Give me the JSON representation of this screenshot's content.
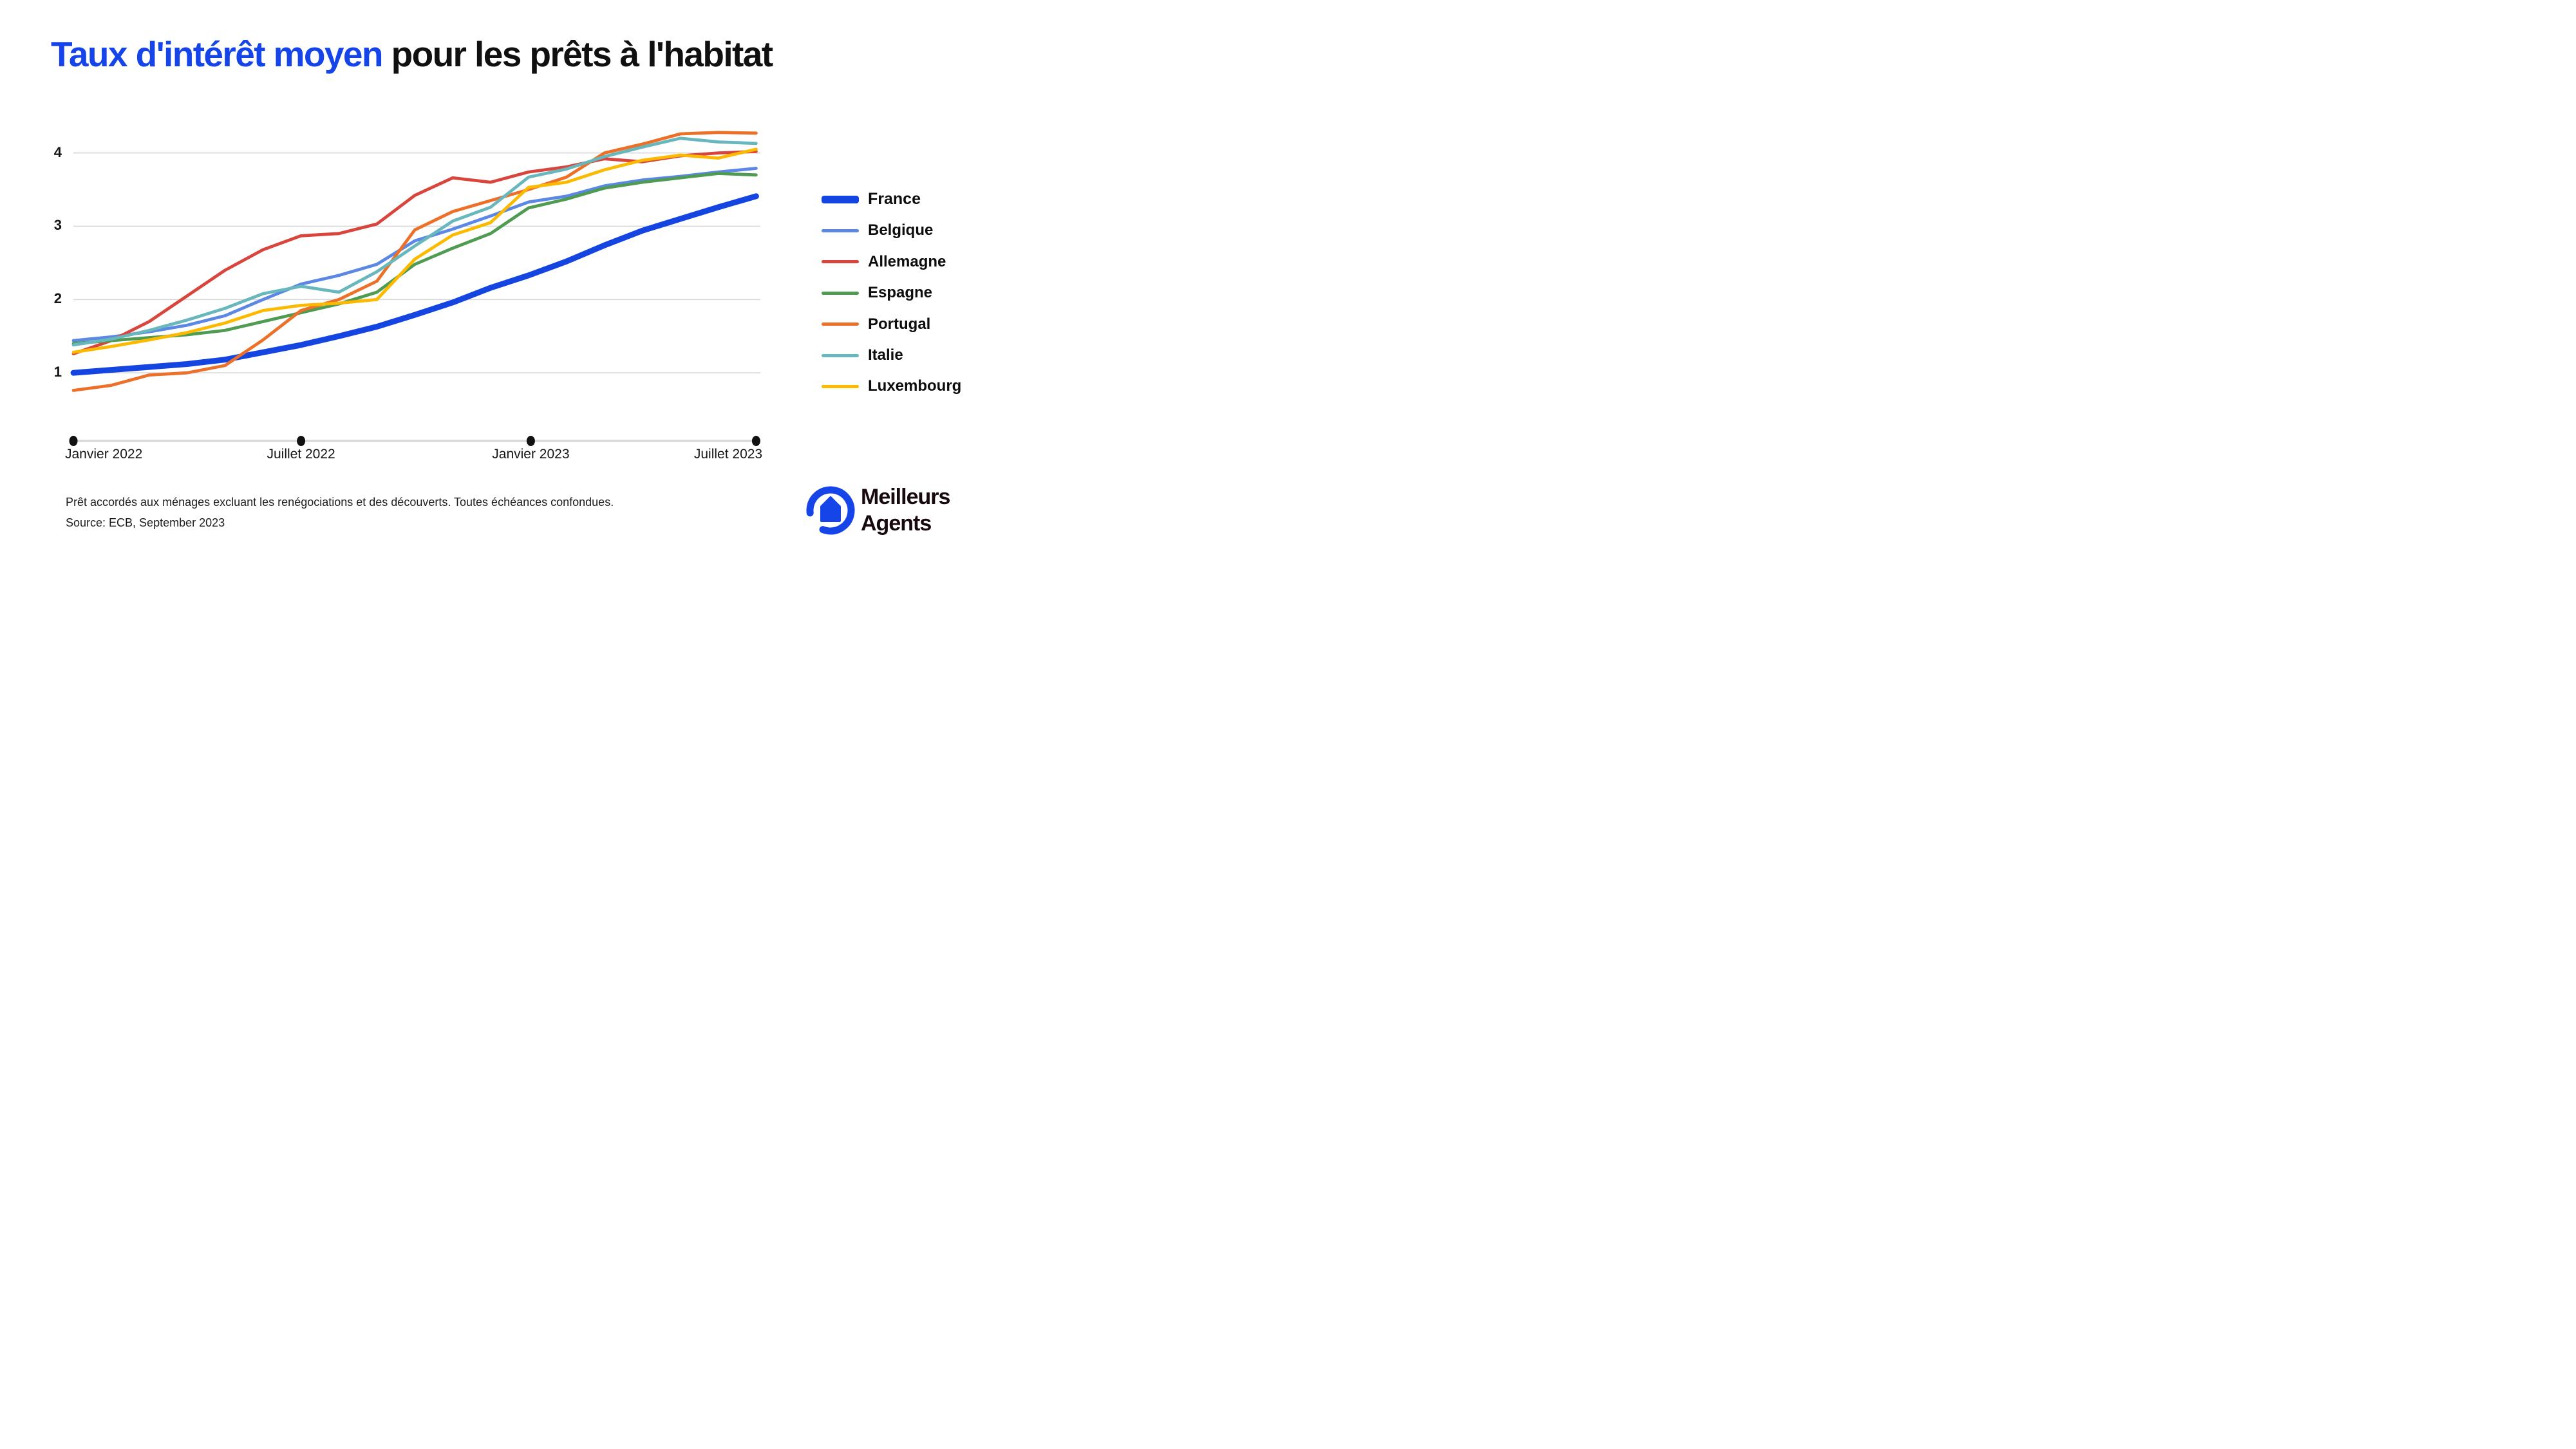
{
  "title": {
    "highlight": "Taux d'intérêt moyen",
    "rest": " pour les prêts à l'habitat"
  },
  "chart_data": {
    "type": "line",
    "x_tick_labels": [
      "Janvier 2022",
      "Juillet 2022",
      "Janvier 2023",
      "Juillet 2023"
    ],
    "x_range_months": [
      "Janvier 2022",
      "Juillet 2023"
    ],
    "points_per_series": 19,
    "y_ticks": [
      1,
      2,
      3,
      4
    ],
    "ylim": [
      0.6,
      4.45
    ],
    "grid": "horizontal",
    "legend_position": "right",
    "series": [
      {
        "name": "France",
        "color": "#1545e0",
        "emphasis": true,
        "values": [
          1.0,
          1.04,
          1.08,
          1.12,
          1.18,
          1.28,
          1.38,
          1.5,
          1.63,
          1.79,
          1.96,
          2.16,
          2.33,
          2.52,
          2.74,
          2.94,
          3.1,
          3.26,
          3.41
        ]
      },
      {
        "name": "Belgique",
        "color": "#5b87e5",
        "emphasis": false,
        "values": [
          1.44,
          1.49,
          1.56,
          1.65,
          1.78,
          2.0,
          2.21,
          2.33,
          2.48,
          2.8,
          2.96,
          3.14,
          3.33,
          3.41,
          3.55,
          3.63,
          3.68,
          3.74,
          3.79
        ]
      },
      {
        "name": "Allemagne",
        "color": "#d9453c",
        "emphasis": false,
        "values": [
          1.26,
          1.44,
          1.7,
          2.05,
          2.4,
          2.68,
          2.87,
          2.9,
          3.03,
          3.42,
          3.66,
          3.6,
          3.74,
          3.81,
          3.92,
          3.88,
          3.96,
          4.0,
          4.02
        ]
      },
      {
        "name": "Espagne",
        "color": "#4e9b51",
        "emphasis": false,
        "values": [
          1.4,
          1.44,
          1.48,
          1.52,
          1.58,
          1.7,
          1.82,
          1.94,
          2.1,
          2.48,
          2.7,
          2.9,
          3.25,
          3.37,
          3.52,
          3.6,
          3.66,
          3.72,
          3.7
        ]
      },
      {
        "name": "Portugal",
        "color": "#ed7028",
        "emphasis": false,
        "values": [
          0.76,
          0.83,
          0.97,
          1.0,
          1.1,
          1.45,
          1.85,
          2.0,
          2.25,
          2.95,
          3.2,
          3.35,
          3.5,
          3.67,
          4.0,
          4.12,
          4.26,
          4.28,
          4.27
        ]
      },
      {
        "name": "Italie",
        "color": "#67b7bc",
        "emphasis": false,
        "values": [
          1.38,
          1.46,
          1.58,
          1.72,
          1.88,
          2.08,
          2.18,
          2.1,
          2.38,
          2.73,
          3.07,
          3.26,
          3.67,
          3.78,
          3.95,
          4.08,
          4.2,
          4.15,
          4.13
        ]
      },
      {
        "name": "Luxembourg",
        "color": "#fbba00",
        "emphasis": false,
        "values": [
          1.28,
          1.36,
          1.45,
          1.55,
          1.68,
          1.85,
          1.92,
          1.95,
          2.0,
          2.55,
          2.88,
          3.05,
          3.53,
          3.6,
          3.77,
          3.9,
          3.97,
          3.93,
          4.05
        ]
      }
    ]
  },
  "footnote": {
    "line1": "Prêt accordés aux ménages excluant les renégociations et des découverts. Toutes échéances confondues.",
    "line2": "Source: ECB, September 2023"
  },
  "logo": {
    "line1": "Meilleurs",
    "line2": "Agents"
  },
  "colors": {
    "brand_blue": "#1544e8",
    "gridline": "#d8d8d8",
    "axis_line": "#d9d9d9",
    "axis_dot": "#111111",
    "text": "#0d0d0d"
  }
}
